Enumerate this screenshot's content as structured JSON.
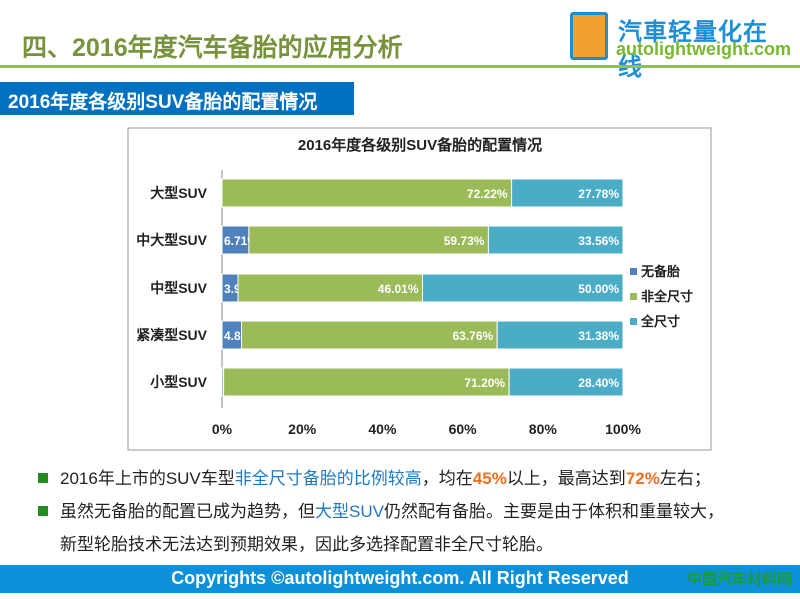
{
  "header": {
    "title": "四、2016年度汽车备胎的应用分析",
    "logo_cn": "汽車轻量化在线",
    "logo_en": "autolightweight.com"
  },
  "section_title": "2016年度各级别SUV备胎的配置情况",
  "chart_data": {
    "type": "bar",
    "stacked": true,
    "orientation": "horizontal",
    "title": "2016年度各级别SUV备胎的配置情况",
    "categories": [
      "大型SUV",
      "中大型SUV",
      "中型SUV",
      "紧凑型SUV",
      "小型SUV"
    ],
    "series": [
      {
        "name": "无备胎",
        "color": "#4f81bd",
        "values": [
          0,
          6.71,
          3.99,
          4.87,
          0.4
        ]
      },
      {
        "name": "非全尺寸",
        "color": "#9bbb59",
        "values": [
          72.22,
          59.73,
          46.01,
          63.76,
          71.2
        ]
      },
      {
        "name": "全尺寸",
        "color": "#4bacc6",
        "values": [
          27.78,
          33.56,
          50.0,
          31.38,
          28.4
        ]
      }
    ],
    "xlim": [
      0,
      100
    ],
    "xticks": [
      "0%",
      "20%",
      "40%",
      "60%",
      "80%",
      "100%"
    ],
    "legend": "right"
  },
  "bullets": [
    {
      "parts": [
        {
          "t": "2016年上市的SUV车型"
        },
        {
          "t": "非全尺寸备胎的比例较高",
          "c": "blue"
        },
        {
          "t": "，均在"
        },
        {
          "t": "45%",
          "c": "or"
        },
        {
          "t": "以上，最高达到"
        },
        {
          "t": "72%",
          "c": "or"
        },
        {
          "t": "左右；"
        }
      ]
    },
    {
      "parts": [
        {
          "t": "虽然无备胎的配置已成为趋势，但"
        },
        {
          "t": "大型SUV",
          "c": "blue"
        },
        {
          "t": "仍然配有备胎。主要是由于体积和重量较大，"
        }
      ]
    },
    {
      "parts": [
        {
          "t": "新型轮胎技术无法达到预期效果，因此多选择配置非全尺寸轮胎。"
        }
      ],
      "cont": true
    }
  ],
  "footer": "Copyrights ©autolightweight.com. All Right Reserved",
  "watermark": "中国汽车材料网"
}
